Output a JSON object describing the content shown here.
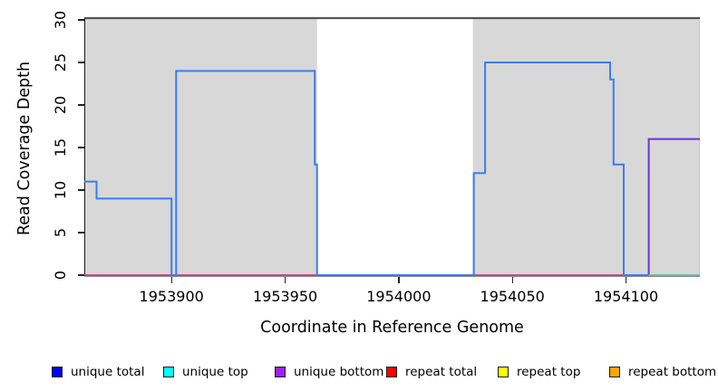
{
  "chart_data": {
    "type": "line",
    "step": true,
    "title": "",
    "xlabel": "Coordinate in Reference Genome",
    "ylabel": "Read Coverage Depth",
    "xlim": [
      1953861.6,
      1954132.5
    ],
    "ylim": [
      0,
      30
    ],
    "x_ticks": [
      "1953900",
      "1953950",
      "1954000",
      "1954050",
      "1954100"
    ],
    "x_tick_values": [
      1953900,
      1953950,
      1954000,
      1954050,
      1954100
    ],
    "y_ticks": [
      "0",
      "5",
      "10",
      "15",
      "20",
      "25",
      "30"
    ],
    "y_tick_values": [
      0,
      5,
      10,
      15,
      20,
      25,
      30
    ],
    "grid": false,
    "plot_background": "#ffffff",
    "shaded_regions": {
      "color": "#d8d8d8",
      "x_ranges": [
        [
          1953861.6,
          1953964.0
        ],
        [
          1954032.6,
          1954132.5
        ]
      ]
    },
    "border_colors": {
      "top": "#555555",
      "left": "#1a1a1a",
      "right": "#c4c4c4",
      "bottom": "#8a8a8a"
    },
    "series": [
      {
        "name": "unique top",
        "line_color": "#00e5ee",
        "width": 1.2,
        "segments": [
          [
            1953861.6,
            1954132.5,
            0
          ]
        ]
      },
      {
        "name": "repeat top",
        "line_color": "#f5e400",
        "width": 1.2,
        "segments": [
          [
            1953861.6,
            1954132.5,
            0
          ]
        ]
      },
      {
        "name": "repeat bottom",
        "line_color": "#f0a028",
        "width": 1.2,
        "segments": [
          [
            1953861.6,
            1954132.5,
            0
          ]
        ]
      },
      {
        "name": "unique bottom",
        "line_color": "#6a35d9",
        "width": 2,
        "segments": [
          [
            1953861.6,
            1954110,
            0
          ],
          [
            1954110,
            1954132.5,
            16
          ]
        ]
      },
      {
        "name": "repeat total",
        "line_color": "#e8516b",
        "width": 1.4,
        "segments": [
          [
            1953861.6,
            1954132.5,
            0
          ]
        ]
      },
      {
        "name": "unique total",
        "line_color": "#3a7cf2",
        "width": 2,
        "segments": [
          [
            1953861.6,
            1953867,
            11
          ],
          [
            1953867,
            1953900,
            9
          ],
          [
            1953900,
            1953902,
            0
          ],
          [
            1953902,
            1953963,
            24
          ],
          [
            1953963,
            1953964,
            13
          ],
          [
            1953964,
            1954033,
            0
          ],
          [
            1954033,
            1954038,
            12
          ],
          [
            1954038,
            1954093,
            25
          ],
          [
            1954093,
            1954094.5,
            23
          ],
          [
            1954094.5,
            1954099,
            13
          ],
          [
            1954099,
            1954132.5,
            0
          ]
        ]
      },
      {
        "name": "unlabeled green",
        "line_color": "#8bc98b",
        "width": 1.6,
        "segments": [
          [
            1954110,
            1954132.5,
            0
          ]
        ]
      }
    ],
    "legend": {
      "position": "bottom",
      "items": [
        {
          "label": "unique total",
          "color": "#0000ff"
        },
        {
          "label": "unique top",
          "color": "#00ffff"
        },
        {
          "label": "unique bottom",
          "color": "#a020f0"
        },
        {
          "label": "repeat total",
          "color": "#ff0000"
        },
        {
          "label": "repeat top",
          "color": "#ffff00"
        },
        {
          "label": "repeat bottom",
          "color": "#ffa500"
        }
      ]
    }
  }
}
